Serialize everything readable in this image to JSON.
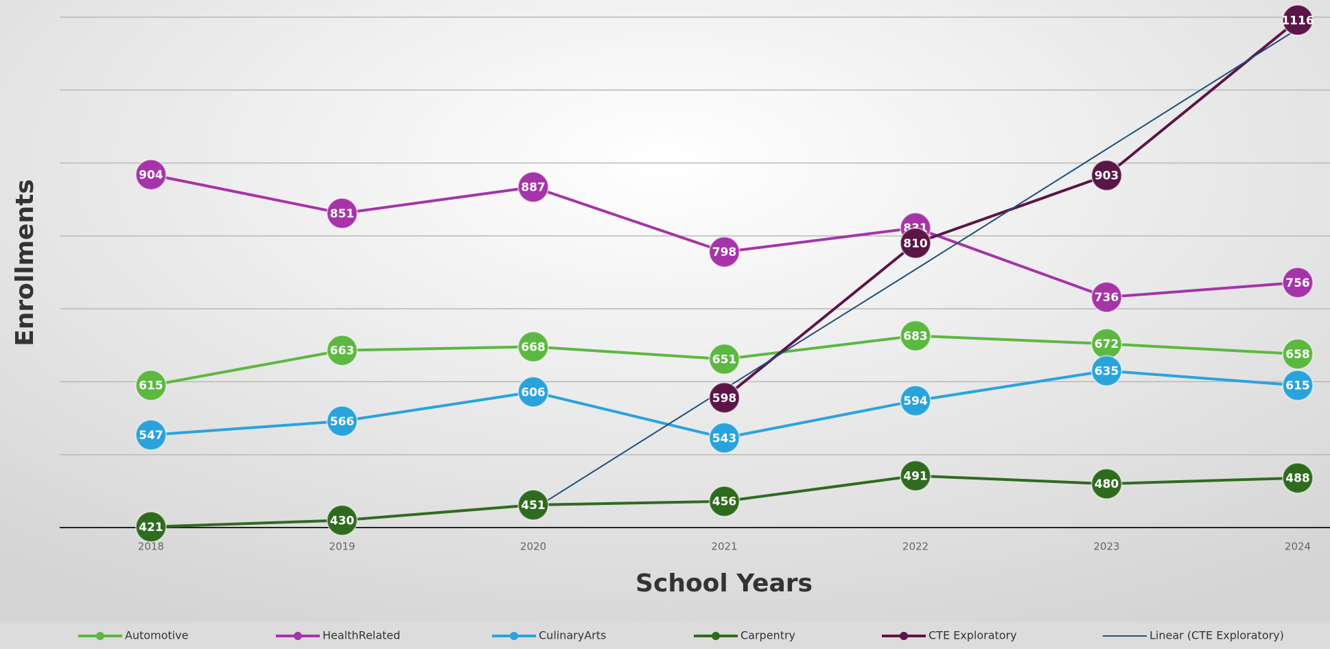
{
  "chart_data": {
    "type": "line",
    "x_label": "School Years",
    "y_label": "Enrollments",
    "categories": [
      "2018",
      "2019",
      "2020",
      "2021",
      "2022",
      "2023",
      "2024"
    ],
    "series": [
      {
        "name": "Automotive",
        "color": "#5cb840",
        "values": [
          615,
          663,
          668,
          651,
          683,
          672,
          658
        ]
      },
      {
        "name": "HealthRelated",
        "color": "#a534a8",
        "values": [
          904,
          851,
          887,
          798,
          831,
          736,
          756
        ]
      },
      {
        "name": "CulinaryArts",
        "color": "#2aa3dc",
        "values": [
          547,
          566,
          606,
          543,
          594,
          635,
          615
        ]
      },
      {
        "name": "Carpentry",
        "color": "#2f6b1f",
        "values": [
          421,
          430,
          451,
          456,
          491,
          480,
          488
        ]
      },
      {
        "name": "CTE Exploratory",
        "color": "#5b1547",
        "values": [
          null,
          null,
          null,
          598,
          810,
          903,
          1116
        ]
      },
      {
        "name": "Linear (CTE Exploratory)",
        "color": "#1f4e79",
        "trendline": true,
        "values": [
          null,
          null,
          445,
          610,
          774,
          939,
          1104
        ]
      }
    ],
    "ylim": [
      420,
      1120
    ],
    "yticks": [
      420,
      520,
      620,
      720,
      820,
      920,
      1020,
      1120
    ],
    "grid": true,
    "legend": "bottom"
  }
}
